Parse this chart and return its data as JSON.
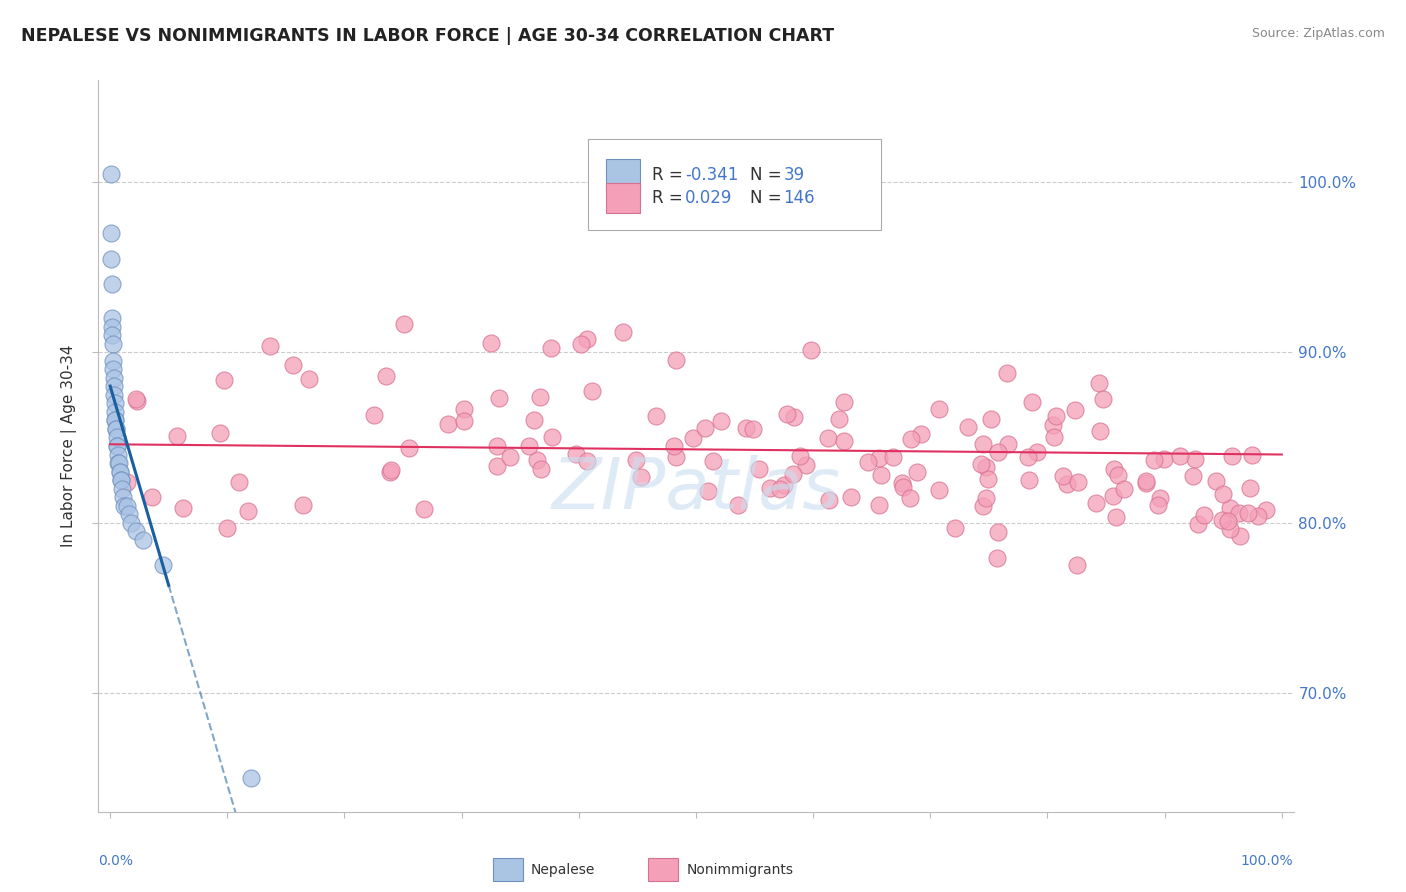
{
  "title": "NEPALESE VS NONIMMIGRANTS IN LABOR FORCE | AGE 30-34 CORRELATION CHART",
  "source": "Source: ZipAtlas.com",
  "ylabel": "In Labor Force | Age 30-34",
  "y_tick_vals": [
    70.0,
    80.0,
    90.0,
    100.0
  ],
  "xlim": [
    0,
    100
  ],
  "ylim": [
    63,
    106
  ],
  "nepalese_color": "#aac4e4",
  "nonimmigrant_color": "#f4a0b8",
  "nepalese_edge": "#7090c0",
  "nonimmigrant_edge": "#d87090",
  "trend_nepalese_color": "#1a5fa0",
  "trend_nonimmigrant_color": "#e03060",
  "grid_color": "#cccccc",
  "background_color": "#ffffff",
  "watermark_color": "#c8dff0",
  "right_tick_color": "#4477cc",
  "title_color": "#222222",
  "source_color": "#888888"
}
